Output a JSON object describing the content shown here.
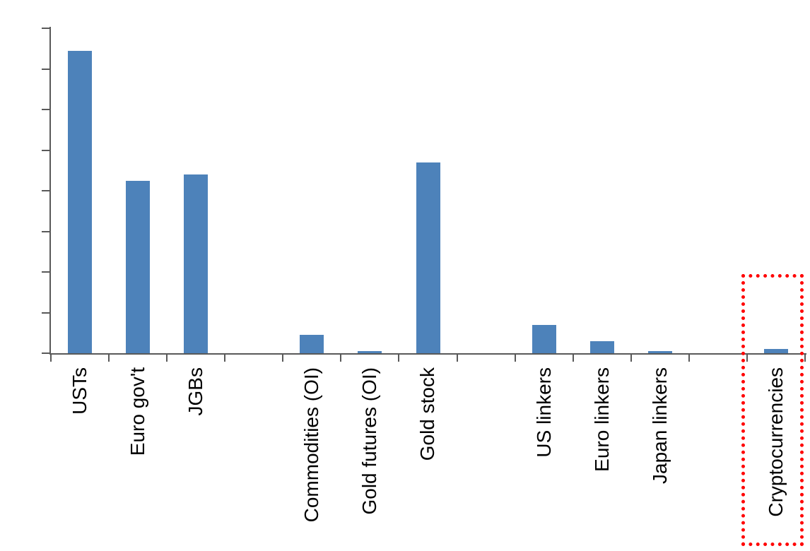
{
  "chart_data": {
    "type": "bar",
    "title": "",
    "categories": [
      "USTs",
      "Euro gov't",
      "JGBs",
      "Commodities (OI)",
      "Gold futures (OI)",
      "Gold stock",
      "US linkers",
      "Euro linkers",
      "Japan linkers",
      "Cryptocurrencies"
    ],
    "values": [
      14.9,
      8.5,
      8.8,
      0.9,
      0.1,
      9.4,
      1.4,
      0.6,
      0.1,
      0.2
    ],
    "data_labels": [
      "14.9",
      "8.5",
      "8.8",
      "0.9",
      "0.1",
      "9.4",
      "1.4",
      "0.6",
      "0.1",
      "0.2"
    ],
    "groups": [
      {
        "categories": [
          "USTs",
          "Euro gov't",
          "JGBs"
        ],
        "values": [
          14.9,
          8.5,
          8.8
        ],
        "labels": [
          "14.9",
          "8.5",
          "8.8"
        ]
      },
      {
        "categories": [
          "Commodities (OI)",
          "Gold futures (OI)",
          "Gold stock"
        ],
        "values": [
          0.9,
          0.1,
          9.4
        ],
        "labels": [
          "0.9",
          "0.1",
          "9.4"
        ]
      },
      {
        "categories": [
          "US linkers",
          "Euro linkers",
          "Japan linkers"
        ],
        "values": [
          1.4,
          0.6,
          0.1
        ],
        "labels": [
          "1.4",
          "0.6",
          "0.1"
        ]
      },
      {
        "categories": [
          "Cryptocurrencies"
        ],
        "values": [
          0.2
        ],
        "labels": [
          "0.2"
        ]
      }
    ],
    "y_ticks": [
      0,
      2,
      4,
      6,
      8,
      10,
      12,
      14,
      16
    ],
    "ylim": [
      0,
      16
    ],
    "xlabel": "",
    "ylabel": "",
    "grid": false,
    "legend": false,
    "category_label_rotation_deg": 90,
    "colors": {
      "bar": "#4d82ba",
      "axis": "#595959",
      "text": "#000000",
      "highlight_box": "#ff0000"
    },
    "highlight": {
      "category": "Cryptocurrencies",
      "style": "red-dotted-box"
    }
  }
}
